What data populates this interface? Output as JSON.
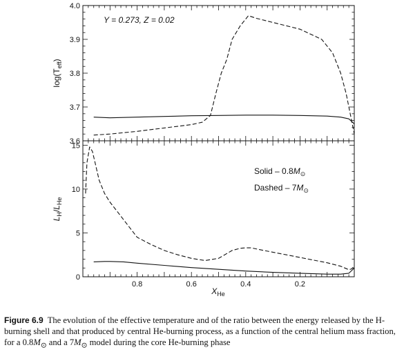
{
  "chart_data": [
    {
      "type": "line",
      "ylabel_base": "log(T",
      "ylabel_sub": "eff",
      "ylabel_close": ")",
      "xlim": [
        1.0,
        0.0
      ],
      "ylim": [
        3.6,
        4.0
      ],
      "yticks": [
        "3.6",
        "3.7",
        "3.8",
        "3.9",
        "4.0"
      ],
      "annotation": "Y = 0.273, Z = 0.02",
      "grid": false,
      "series": [
        {
          "style": "solid",
          "x": [
            0.96,
            0.9,
            0.8,
            0.7,
            0.6,
            0.5,
            0.4,
            0.3,
            0.2,
            0.1,
            0.05,
            0.02,
            0.0
          ],
          "y": [
            3.67,
            3.668,
            3.67,
            3.672,
            3.674,
            3.675,
            3.676,
            3.676,
            3.675,
            3.673,
            3.67,
            3.665,
            3.65
          ]
        },
        {
          "style": "dashed",
          "x": [
            0.96,
            0.9,
            0.8,
            0.7,
            0.6,
            0.56,
            0.53,
            0.51,
            0.49,
            0.47,
            0.45,
            0.42,
            0.39,
            0.36,
            0.3,
            0.2,
            0.12,
            0.08,
            0.05,
            0.03,
            0.01,
            0.0
          ],
          "y": [
            3.617,
            3.62,
            3.628,
            3.638,
            3.648,
            3.655,
            3.675,
            3.74,
            3.8,
            3.84,
            3.9,
            3.94,
            3.97,
            3.962,
            3.95,
            3.93,
            3.9,
            3.86,
            3.8,
            3.74,
            3.66,
            3.62
          ]
        }
      ]
    },
    {
      "type": "line",
      "xlabel_base": "X",
      "xlabel_sub": "He",
      "ylabel_a": "L",
      "ylabel_a_sub": "H",
      "ylabel_slash": "/",
      "ylabel_b": "L",
      "ylabel_b_sub": "He",
      "xlim": [
        1.0,
        0.0
      ],
      "ylim": [
        0,
        15.5
      ],
      "xticks": [
        "0.8",
        "0.6",
        "0.4",
        "0.2"
      ],
      "yticks": [
        "0",
        "5",
        "10",
        "15"
      ],
      "legend": [
        {
          "style": "solid",
          "prefix": "Solid – 0.8",
          "symbol": "M",
          "sub": "⊙"
        },
        {
          "style": "dashed",
          "prefix": "Dashed – 7",
          "symbol": "M",
          "sub": "⊙"
        }
      ],
      "legend_position": "top-right",
      "grid": false,
      "series": [
        {
          "style": "solid",
          "x": [
            0.96,
            0.92,
            0.9,
            0.85,
            0.8,
            0.7,
            0.6,
            0.5,
            0.4,
            0.3,
            0.2,
            0.1,
            0.05,
            0.02,
            0.01,
            0.0
          ],
          "y": [
            1.7,
            1.75,
            1.75,
            1.7,
            1.55,
            1.3,
            1.05,
            0.85,
            0.65,
            0.5,
            0.4,
            0.3,
            0.3,
            0.4,
            0.7,
            1.0
          ]
        },
        {
          "style": "dashed",
          "x": [
            0.99,
            0.985,
            0.975,
            0.965,
            0.955,
            0.94,
            0.92,
            0.9,
            0.88,
            0.85,
            0.8,
            0.75,
            0.7,
            0.65,
            0.6,
            0.55,
            0.5,
            0.45,
            0.42,
            0.4,
            0.38,
            0.35,
            0.3,
            0.25,
            0.2,
            0.15,
            0.1,
            0.05,
            0.02,
            0.01,
            0.0
          ],
          "y": [
            9.5,
            13.0,
            14.8,
            14.3,
            13.0,
            11.0,
            9.5,
            8.5,
            7.7,
            6.5,
            4.5,
            3.7,
            3.0,
            2.5,
            2.1,
            1.85,
            2.1,
            3.0,
            3.25,
            3.3,
            3.3,
            3.1,
            2.8,
            2.5,
            2.2,
            1.9,
            1.6,
            1.2,
            0.8,
            0.9,
            1.2
          ]
        }
      ]
    }
  ],
  "caption": {
    "lead": "Figure 6.9",
    "line1": "The evolution of the effective temperature and of the ratio between the energy released",
    "line2": "by the H-burning shell and that produced by central He-burning process, as a function of the central",
    "line3_a": "helium mass fraction, for a 0.8",
    "line3_b": " and a 7",
    "line3_c": " model during the core He-burning phase",
    "mass_symbol": "M",
    "mass_sub": "⊙"
  }
}
